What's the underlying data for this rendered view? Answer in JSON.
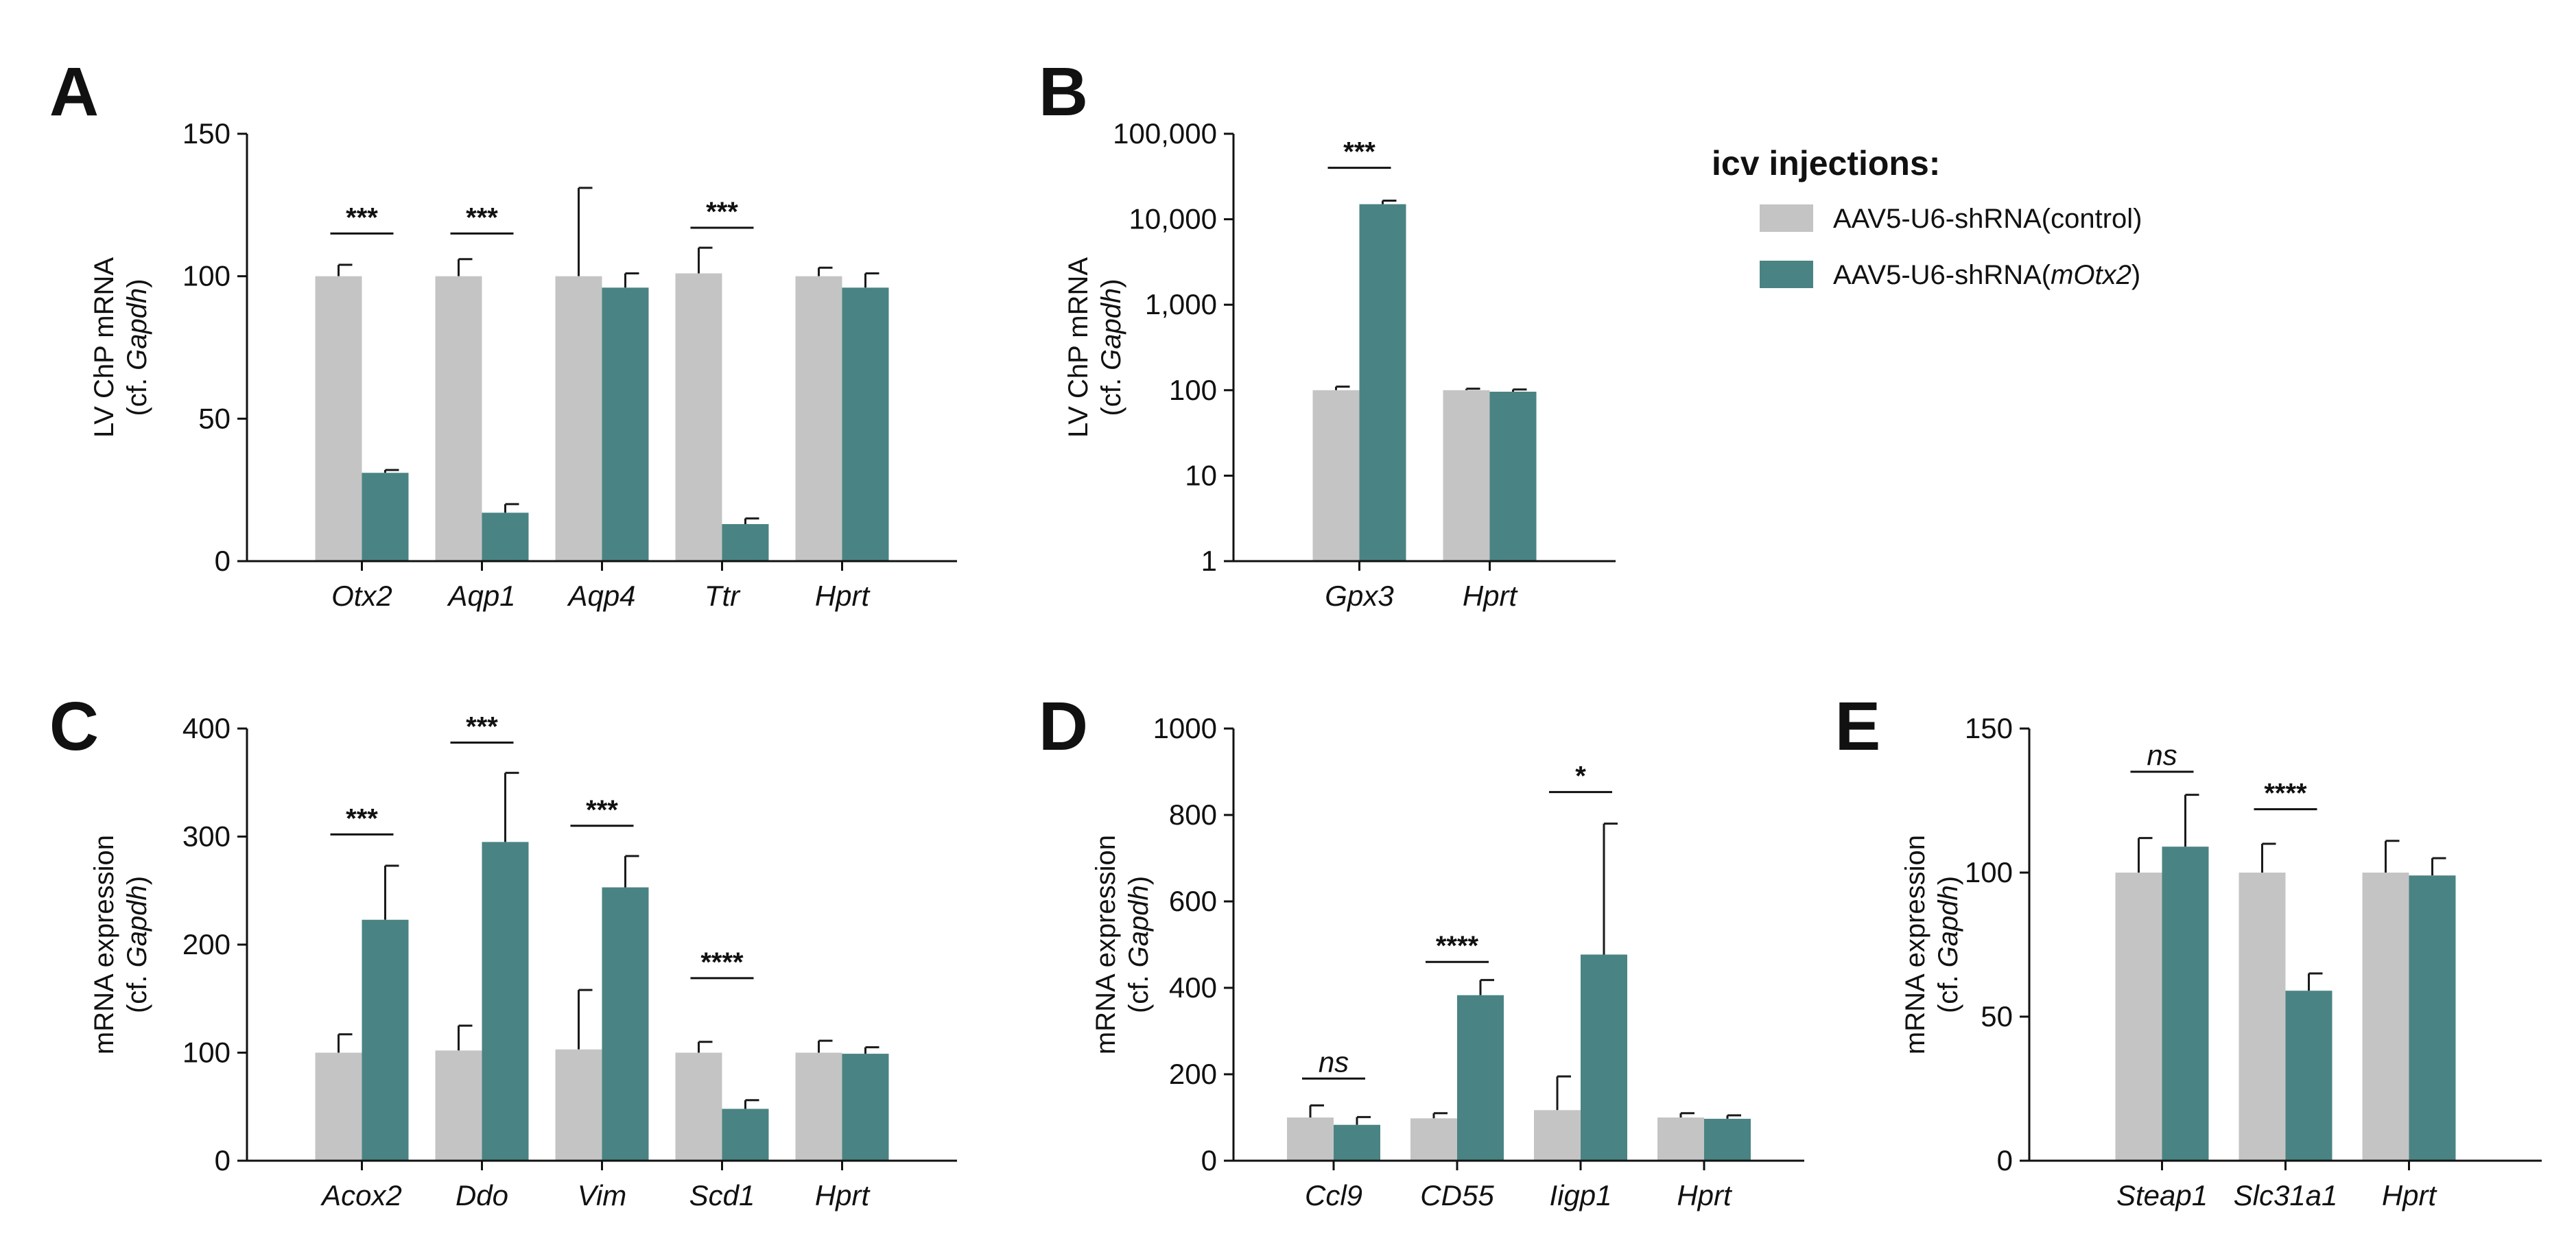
{
  "colors": {
    "control": "#c4c4c4",
    "knockdown": "#4a8383",
    "axis": "#111111"
  },
  "legend": {
    "title": "icv injections:",
    "items": [
      {
        "series": "control",
        "parts": [
          {
            "text": "AAV5-U6-shRNA(control)",
            "italic": false
          }
        ]
      },
      {
        "series": "knockdown",
        "parts": [
          {
            "text": "AAV5-U6-shRNA(",
            "italic": false
          },
          {
            "text": "mOtx2",
            "italic": true
          },
          {
            "text": ")",
            "italic": false
          }
        ]
      }
    ]
  },
  "chart_data": [
    {
      "panel": "A",
      "type": "bar",
      "scale": "linear",
      "ylim": [
        0,
        150
      ],
      "yticks": [
        0,
        50,
        100,
        150
      ],
      "ytick_labels": [
        "0",
        "50",
        "100",
        "150"
      ],
      "ylabel": {
        "line1": "LV ChP mRNA",
        "line2_prefix": "(cf. ",
        "line2_italic": "Gapdh",
        "line2_suffix": ")"
      },
      "categories": [
        "Otx2",
        "Aqp1",
        "Aqp4",
        "Ttr",
        "Hprt"
      ],
      "series": [
        {
          "name": "AAV5-U6-shRNA(control)",
          "key": "control",
          "values": [
            100,
            100,
            100,
            101,
            100
          ],
          "errors": [
            4,
            6,
            31,
            9,
            3
          ]
        },
        {
          "name": "AAV5-U6-shRNA(mOtx2)",
          "key": "knockdown",
          "values": [
            31,
            17,
            96,
            13,
            96
          ],
          "errors": [
            1,
            3,
            5,
            2,
            5
          ]
        }
      ],
      "significance": [
        {
          "category": 0,
          "label": "***",
          "y": 115
        },
        {
          "category": 1,
          "label": "***",
          "y": 115
        },
        {
          "category": 3,
          "label": "***",
          "y": 117
        }
      ]
    },
    {
      "panel": "B",
      "type": "bar",
      "scale": "log",
      "ylim": [
        1,
        100000
      ],
      "yticks": [
        1,
        10,
        100,
        1000,
        10000,
        100000
      ],
      "ytick_labels": [
        "1",
        "10",
        "100",
        "1,000",
        "10,000",
        "100,000"
      ],
      "ylabel": {
        "line1": "LV ChP mRNA",
        "line2_prefix": "(cf. ",
        "line2_italic": "Gapdh",
        "line2_suffix": ")"
      },
      "categories": [
        "Gpx3",
        "Hprt"
      ],
      "series": [
        {
          "name": "AAV5-U6-shRNA(control)",
          "key": "control",
          "values": [
            100,
            100
          ],
          "errors": [
            10,
            4
          ]
        },
        {
          "name": "AAV5-U6-shRNA(mOtx2)",
          "key": "knockdown",
          "values": [
            15000,
            96
          ],
          "errors": [
            1500,
            6
          ]
        }
      ],
      "significance": [
        {
          "category": 0,
          "label": "***",
          "y": 40000
        }
      ]
    },
    {
      "panel": "C",
      "type": "bar",
      "scale": "linear",
      "ylim": [
        0,
        400
      ],
      "yticks": [
        0,
        100,
        200,
        300,
        400
      ],
      "ytick_labels": [
        "0",
        "100",
        "200",
        "300",
        "400"
      ],
      "ylabel": {
        "line1": "mRNA expression",
        "line2_prefix": "(cf. ",
        "line2_italic": "Gapdh",
        "line2_suffix": ")"
      },
      "categories": [
        "Acox2",
        "Ddo",
        "Vim",
        "Scd1",
        "Hprt"
      ],
      "series": [
        {
          "name": "AAV5-U6-shRNA(control)",
          "key": "control",
          "values": [
            100,
            102,
            103,
            100,
            100
          ],
          "errors": [
            17,
            23,
            55,
            10,
            11
          ]
        },
        {
          "name": "AAV5-U6-shRNA(mOtx2)",
          "key": "knockdown",
          "values": [
            223,
            295,
            253,
            48,
            99
          ],
          "errors": [
            50,
            64,
            29,
            8,
            6
          ]
        }
      ],
      "significance": [
        {
          "category": 0,
          "label": "***",
          "y": 302
        },
        {
          "category": 1,
          "label": "***",
          "y": 387
        },
        {
          "category": 2,
          "label": "***",
          "y": 310
        },
        {
          "category": 3,
          "label": "****",
          "y": 169
        }
      ]
    },
    {
      "panel": "D",
      "type": "bar",
      "scale": "linear",
      "ylim": [
        0,
        1000
      ],
      "yticks": [
        0,
        200,
        400,
        600,
        800,
        1000
      ],
      "ytick_labels": [
        "0",
        "200",
        "400",
        "600",
        "800",
        "1000"
      ],
      "ylabel": {
        "line1": "mRNA expression",
        "line2_prefix": "(cf. ",
        "line2_italic": "Gapdh",
        "line2_suffix": ")"
      },
      "categories": [
        "Ccl9",
        "CD55",
        "Iigp1",
        "Hprt"
      ],
      "series": [
        {
          "name": "AAV5-U6-shRNA(control)",
          "key": "control",
          "values": [
            100,
            98,
            117,
            100
          ],
          "errors": [
            28,
            12,
            78,
            10
          ]
        },
        {
          "name": "AAV5-U6-shRNA(mOtx2)",
          "key": "knockdown",
          "values": [
            83,
            383,
            477,
            97
          ],
          "errors": [
            18,
            35,
            303,
            8
          ]
        }
      ],
      "significance": [
        {
          "category": 0,
          "label": "ns",
          "y": 190
        },
        {
          "category": 1,
          "label": "****",
          "y": 460
        },
        {
          "category": 2,
          "label": "*",
          "y": 853
        }
      ]
    },
    {
      "panel": "E",
      "type": "bar",
      "scale": "linear",
      "ylim": [
        0,
        150
      ],
      "yticks": [
        0,
        50,
        100,
        150
      ],
      "ytick_labels": [
        "0",
        "50",
        "100",
        "150"
      ],
      "ylabel": {
        "line1": "mRNA expression",
        "line2_prefix": "(cf. ",
        "line2_italic": "Gapdh",
        "line2_suffix": ")"
      },
      "categories": [
        "Steap1",
        "Slc31a1",
        "Hprt"
      ],
      "series": [
        {
          "name": "AAV5-U6-shRNA(control)",
          "key": "control",
          "values": [
            100,
            100,
            100
          ],
          "errors": [
            12,
            10,
            11
          ]
        },
        {
          "name": "AAV5-U6-shRNA(mOtx2)",
          "key": "knockdown",
          "values": [
            109,
            59,
            99
          ],
          "errors": [
            18,
            6,
            6
          ]
        }
      ],
      "significance": [
        {
          "category": 0,
          "label": "ns",
          "y": 135
        },
        {
          "category": 1,
          "label": "****",
          "y": 122
        }
      ]
    }
  ]
}
